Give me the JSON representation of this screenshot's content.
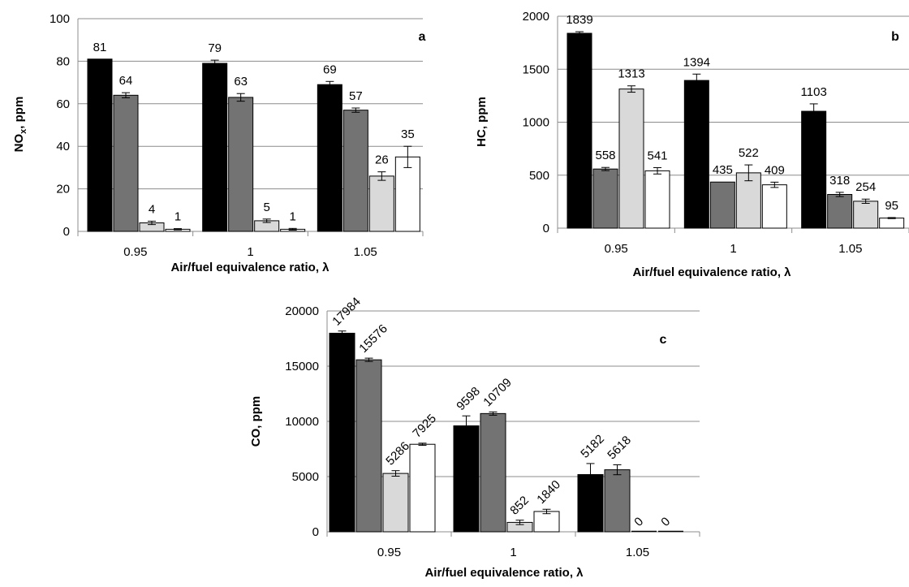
{
  "colors": {
    "series1": "#000000",
    "series2": "#737373",
    "series3": "#d9d9d9",
    "series4": "#ffffff",
    "grid": "#8c8c8c"
  },
  "chart_data": [
    {
      "id": "a",
      "type": "bar",
      "panel_label": "a",
      "xlabel": "Air/fuel equivalence ratio, λ",
      "ylabel": "NO",
      "ylabel_sub": "x",
      "ylabel_suffix": ", ppm",
      "categories": [
        "0.95",
        "1",
        "1.05"
      ],
      "ylim": [
        0,
        100
      ],
      "yticks": [
        "0",
        "20",
        "40",
        "60",
        "80",
        "100"
      ],
      "grid": true,
      "legend": "none",
      "series": [
        {
          "values": [
            81,
            79,
            69
          ],
          "errors": [
            0,
            1.5,
            1.5
          ],
          "labels": [
            "81",
            "79",
            "69"
          ]
        },
        {
          "values": [
            64,
            63,
            57
          ],
          "errors": [
            1.2,
            1.8,
            1.0
          ],
          "labels": [
            "64",
            "63",
            "57"
          ]
        },
        {
          "values": [
            4,
            5,
            26
          ],
          "errors": [
            0.8,
            0.8,
            2.0
          ],
          "labels": [
            "4",
            "5",
            "26"
          ]
        },
        {
          "values": [
            1,
            1,
            35
          ],
          "errors": [
            0.3,
            0.4,
            5.0
          ],
          "labels": [
            "1",
            "1",
            "35"
          ]
        }
      ]
    },
    {
      "id": "b",
      "type": "bar",
      "panel_label": "b",
      "xlabel": "Air/fuel equivalence ratio, λ",
      "ylabel": "HC, ppm",
      "categories": [
        "0.95",
        "1",
        "1.05"
      ],
      "ylim": [
        0,
        2000
      ],
      "yticks": [
        "0",
        "500",
        "1000",
        "1500",
        "2000"
      ],
      "grid": true,
      "legend": "none",
      "series": [
        {
          "values": [
            1839,
            1394,
            1103
          ],
          "errors": [
            15,
            60,
            70
          ],
          "labels": [
            "1839",
            "1394",
            "1103"
          ]
        },
        {
          "values": [
            558,
            435,
            318
          ],
          "errors": [
            15,
            0,
            20
          ],
          "labels": [
            "558",
            "435",
            "318"
          ]
        },
        {
          "values": [
            1313,
            522,
            254
          ],
          "errors": [
            30,
            75,
            20
          ],
          "labels": [
            "1313",
            "522",
            "254"
          ]
        },
        {
          "values": [
            541,
            409,
            95
          ],
          "errors": [
            30,
            25,
            5
          ],
          "labels": [
            "541",
            "409",
            "95"
          ]
        }
      ]
    },
    {
      "id": "c",
      "type": "bar",
      "panel_label": "c",
      "xlabel": "Air/fuel equivalence ratio, λ",
      "ylabel": "CO, ppm",
      "categories": [
        "0.95",
        "1",
        "1.05"
      ],
      "ylim": [
        0,
        20000
      ],
      "yticks": [
        "0",
        "5000",
        "10000",
        "15000",
        "20000"
      ],
      "grid": true,
      "legend": "none",
      "series": [
        {
          "values": [
            17984,
            9598,
            5182
          ],
          "errors": [
            200,
            900,
            1000
          ],
          "labels": [
            "17984",
            "9598",
            "5182"
          ]
        },
        {
          "values": [
            15576,
            10709,
            5618
          ],
          "errors": [
            150,
            150,
            450
          ],
          "labels": [
            "15576",
            "10709",
            "5618"
          ]
        },
        {
          "values": [
            5286,
            852,
            0
          ],
          "errors": [
            250,
            200,
            0
          ],
          "labels": [
            "5286",
            "852",
            "0"
          ]
        },
        {
          "values": [
            7925,
            1840,
            0
          ],
          "errors": [
            100,
            200,
            0
          ],
          "labels": [
            "7925",
            "1840",
            "0"
          ]
        }
      ]
    }
  ]
}
